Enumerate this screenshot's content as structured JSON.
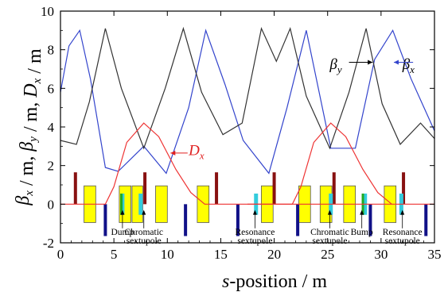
{
  "chart_data": {
    "type": "line",
    "xlabel": "s-position / m",
    "ylabel": "β_x / m, β_y / m, D_x / m",
    "xlim": [
      0,
      35
    ],
    "ylim": [
      -2,
      10
    ],
    "xticks": [
      "0",
      "5",
      "10",
      "15",
      "20",
      "25",
      "30",
      "35"
    ],
    "yticks": [
      "-2",
      "0",
      "2",
      "4",
      "6",
      "8",
      "10"
    ],
    "grid": false,
    "colors": {
      "beta_x": "#3344cc",
      "beta_y": "#333333",
      "D_x": "#ee3333",
      "dipole": "#ffff00",
      "quad_f": "#881111",
      "quad_d": "#111188",
      "sext_res": "#33ccdd",
      "sext_chrom": "#33ccdd",
      "bump": "#22aa22"
    },
    "series": [
      {
        "name": "βx",
        "key": "beta_x",
        "x": [
          0,
          0.8,
          1.8,
          2.8,
          4.2,
          5.4,
          7.8,
          9.9,
          12.0,
          13.6,
          15.4,
          17.1,
          19.5,
          21.2,
          23.0,
          25.3,
          27.6,
          29.4,
          31.1,
          32.8,
          35.0
        ],
        "y": [
          5.8,
          8.2,
          9.0,
          6.5,
          1.9,
          1.7,
          3.0,
          1.6,
          5.0,
          9.0,
          6.2,
          3.3,
          1.6,
          5.0,
          9.0,
          2.9,
          2.9,
          7.5,
          9.0,
          6.5,
          3.8
        ]
      },
      {
        "name": "βy",
        "key": "beta_y",
        "x": [
          0,
          1.5,
          2.7,
          4.2,
          5.7,
          7.8,
          9.8,
          11.5,
          13.2,
          15.2,
          17.0,
          18.8,
          20.2,
          21.5,
          23.0,
          25.2,
          27.0,
          28.6,
          30.1,
          31.8,
          33.7,
          35.0
        ],
        "y": [
          3.3,
          3.1,
          5.3,
          9.1,
          6.0,
          2.9,
          6.0,
          9.1,
          5.8,
          3.6,
          4.2,
          9.1,
          7.4,
          9.1,
          5.6,
          2.9,
          5.8,
          9.1,
          5.2,
          3.1,
          4.2,
          3.4
        ]
      },
      {
        "name": "Dx",
        "key": "D_x",
        "x": [
          0,
          4.2,
          5.0,
          6.2,
          7.8,
          9.2,
          10.8,
          12.2,
          13.5,
          35.0
        ],
        "y": [
          0,
          0,
          0.9,
          3.2,
          4.2,
          3.5,
          1.8,
          0.6,
          0,
          0
        ],
        "repeat": {
          "offset": 17.5,
          "from": 17.0,
          "to": 31.5
        }
      }
    ],
    "curve_labels": [
      {
        "series": "βy",
        "text": "βy"
      },
      {
        "series": "βx",
        "text": "βx"
      },
      {
        "series": "Dx",
        "text": "Dx"
      }
    ],
    "lattice": {
      "dipoles": [
        [
          2.2,
          3.3
        ],
        [
          5.5,
          6.6
        ],
        [
          6.7,
          7.7
        ],
        [
          8.9,
          10.0
        ],
        [
          12.8,
          13.9
        ],
        [
          18.8,
          19.9
        ],
        [
          22.3,
          23.4
        ],
        [
          24.3,
          25.4
        ],
        [
          26.5,
          27.6
        ],
        [
          30.3,
          31.4
        ]
      ],
      "quad_f": [
        1.4,
        7.9,
        14.6,
        20.0,
        25.6,
        32.1
      ],
      "quad_d": [
        4.2,
        11.7,
        16.6,
        22.2,
        29.0,
        34.2
      ],
      "sextupoles": [
        5.8,
        7.5,
        18.3,
        25.3,
        28.5,
        31.9
      ],
      "bumps": [
        5.7,
        28.3
      ]
    },
    "annotations": [
      {
        "text": "Dump",
        "lines": [
          "Dump"
        ],
        "x": 5.8
      },
      {
        "text": "Chromatic sextupole",
        "lines": [
          "Chromatic",
          "sextupole"
        ],
        "x": 7.8
      },
      {
        "text": "Resonance sextupole",
        "lines": [
          "Resonance",
          "sextupole"
        ],
        "x": 18.2
      },
      {
        "text": "Chromatic sextupole",
        "lines": [
          "Chromatic",
          "sextupole"
        ],
        "x": 25.2
      },
      {
        "text": "Bump",
        "lines": [
          "Bump"
        ],
        "x": 28.2
      },
      {
        "text": "Resonance sextupole",
        "lines": [
          "Resonance",
          "sextupole"
        ],
        "x": 32.0
      }
    ]
  }
}
